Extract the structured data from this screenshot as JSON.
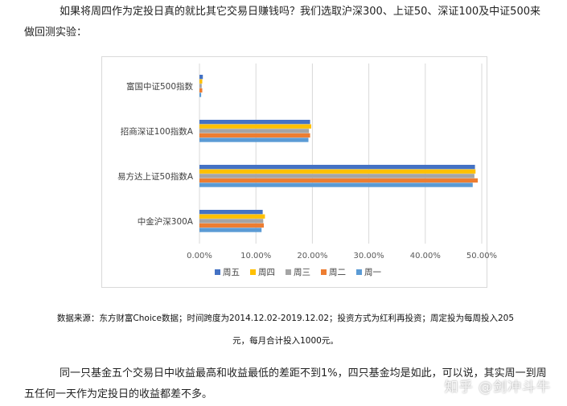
{
  "intro_text": "如果将周四作为定投日真的就比其它交易日赚钱吗？我们选取沪深300、上证50、深证100及中证500来做回测实验：",
  "source_line1": "数据来源：东方财富Choice数据；时间跨度为2014.12.02-2019.12.02；投资方式为红利再投资；周定投为每周投入205",
  "source_line2": "元，每月合计投入1000元。",
  "conclusion_text": "同一只基金五个交易日中收益最高和收益最低的差距不到1%，四只基金均是如此，可以说，其实周一到周五任何一天作为定投日的收益都差不多。",
  "watermark": "知乎 @剑冲斗牛",
  "chart_data": {
    "type": "bar",
    "orientation": "horizontal",
    "categories": [
      "富国中证500指数",
      "招商深证100指数A",
      "易方达上证50指数A",
      "中金沪深300A"
    ],
    "series": [
      {
        "name": "周五",
        "color": "#4472C4",
        "values": [
          0.6,
          19.6,
          48.8,
          11.2
        ]
      },
      {
        "name": "周四",
        "color": "#FFC000",
        "values": [
          0.5,
          19.8,
          48.9,
          11.6
        ]
      },
      {
        "name": "周三",
        "color": "#A5A5A5",
        "values": [
          0.4,
          19.4,
          48.7,
          11.3
        ]
      },
      {
        "name": "周二",
        "color": "#ED7D31",
        "values": [
          0.5,
          19.6,
          49.3,
          11.4
        ]
      },
      {
        "name": "周一",
        "color": "#5B9BD5",
        "values": [
          0.3,
          19.3,
          48.4,
          11.0
        ]
      }
    ],
    "xlim": [
      0,
      50
    ],
    "xticks": [
      "0.00%",
      "10.00%",
      "20.00%",
      "30.00%",
      "40.00%",
      "50.00%"
    ],
    "grid": true,
    "legend_position": "bottom"
  }
}
